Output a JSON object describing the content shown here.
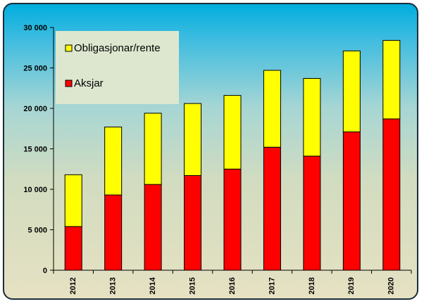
{
  "chart_data": {
    "type": "bar",
    "stacked": true,
    "categories": [
      "2012",
      "2013",
      "2014",
      "2015",
      "2016",
      "2017",
      "2018",
      "2019",
      "2020"
    ],
    "series": [
      {
        "name": "Aksjar",
        "color": "#ff0000",
        "values": [
          5400,
          9300,
          10600,
          11700,
          12500,
          15200,
          14100,
          17100,
          18700
        ]
      },
      {
        "name": "Obligasjonar/rente",
        "color": "#ffff00",
        "values": [
          6400,
          8400,
          8800,
          8900,
          9100,
          9500,
          9600,
          10000,
          9700
        ]
      }
    ],
    "y_ticks": [
      "0",
      "5 000",
      "10 000",
      "15 000",
      "20 000",
      "25 000",
      "30 000"
    ],
    "ylim": [
      0,
      30000
    ],
    "title": "",
    "xlabel": "",
    "ylabel": "",
    "grid": false,
    "legend": {
      "placement": "top-left",
      "order": [
        "Obligasjonar/rente",
        "Aksjar"
      ]
    }
  }
}
